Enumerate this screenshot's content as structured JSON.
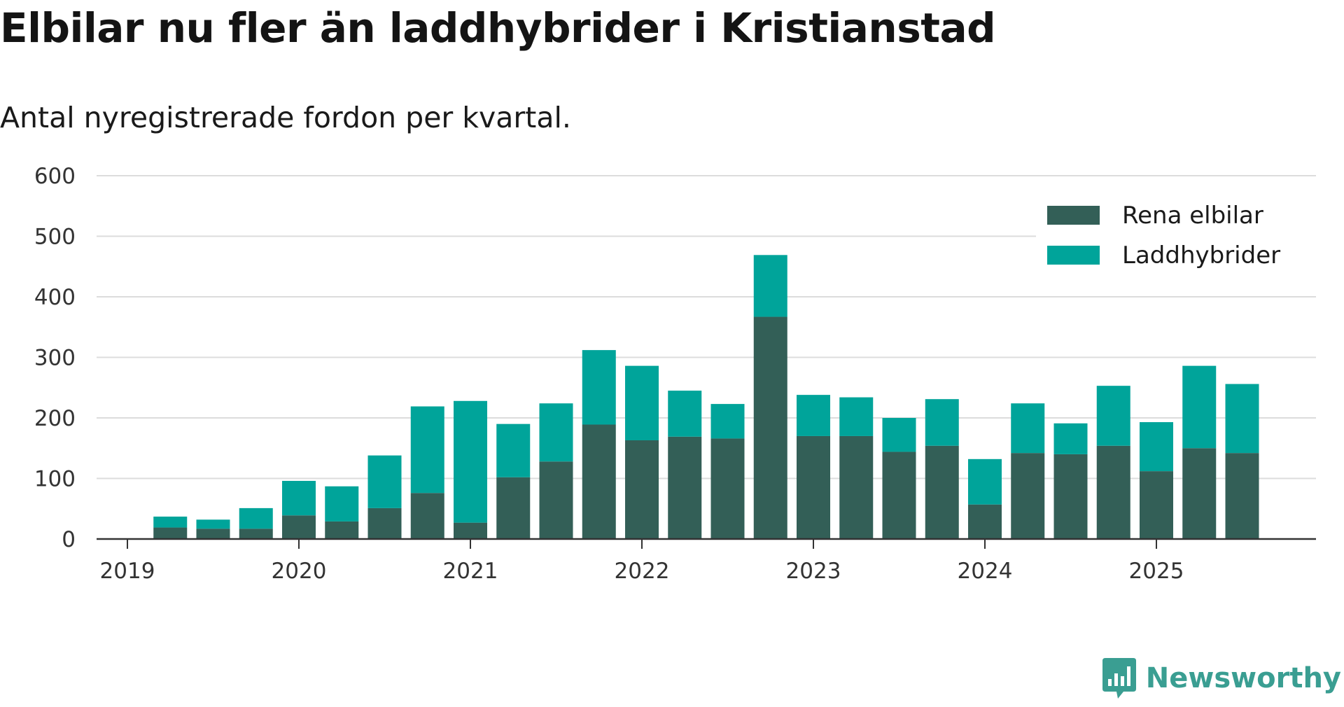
{
  "colors": {
    "rena_elbilar": "#335f57",
    "laddhybrider": "#00a49a",
    "brand": "#3a9e92"
  },
  "brand": {
    "name": "Newsworthy",
    "icon": "bar-chart-speech-bubble-icon"
  },
  "chart_data": {
    "type": "bar",
    "stacked": true,
    "title": "Elbilar nu fler än laddhybrider i Kristianstad",
    "subtitle": "Antal nyregistrerade fordon per kvartal.",
    "xlabel": "",
    "ylabel": "",
    "ylim": [
      0,
      600
    ],
    "yticks": [
      0,
      100,
      200,
      300,
      400,
      500,
      600
    ],
    "xticks": [
      "2019",
      "2020",
      "2021",
      "2022",
      "2023",
      "2024",
      "2025"
    ],
    "grid": true,
    "legend_position": "top-right",
    "categories": [
      "2019-Q2",
      "2019-Q3",
      "2019-Q4",
      "2020-Q1",
      "2020-Q2",
      "2020-Q3",
      "2020-Q4",
      "2021-Q1",
      "2021-Q2",
      "2021-Q3",
      "2021-Q4",
      "2022-Q1",
      "2022-Q2",
      "2022-Q3",
      "2022-Q4",
      "2023-Q1",
      "2023-Q2",
      "2023-Q3",
      "2023-Q4",
      "2024-Q1",
      "2024-Q2",
      "2024-Q3",
      "2024-Q4",
      "2025-Q1",
      "2025-Q2",
      "2025-Q3"
    ],
    "series": [
      {
        "name": "Rena elbilar",
        "values": [
          19,
          17,
          17,
          39,
          29,
          51,
          76,
          27,
          102,
          128,
          189,
          163,
          169,
          166,
          367,
          170,
          170,
          144,
          154,
          57,
          142,
          140,
          154,
          112,
          150,
          142
        ]
      },
      {
        "name": "Laddhybrider",
        "values": [
          18,
          15,
          34,
          57,
          58,
          87,
          143,
          201,
          88,
          96,
          123,
          123,
          76,
          57,
          102,
          68,
          64,
          56,
          77,
          75,
          82,
          51,
          99,
          81,
          136,
          114
        ]
      }
    ]
  }
}
